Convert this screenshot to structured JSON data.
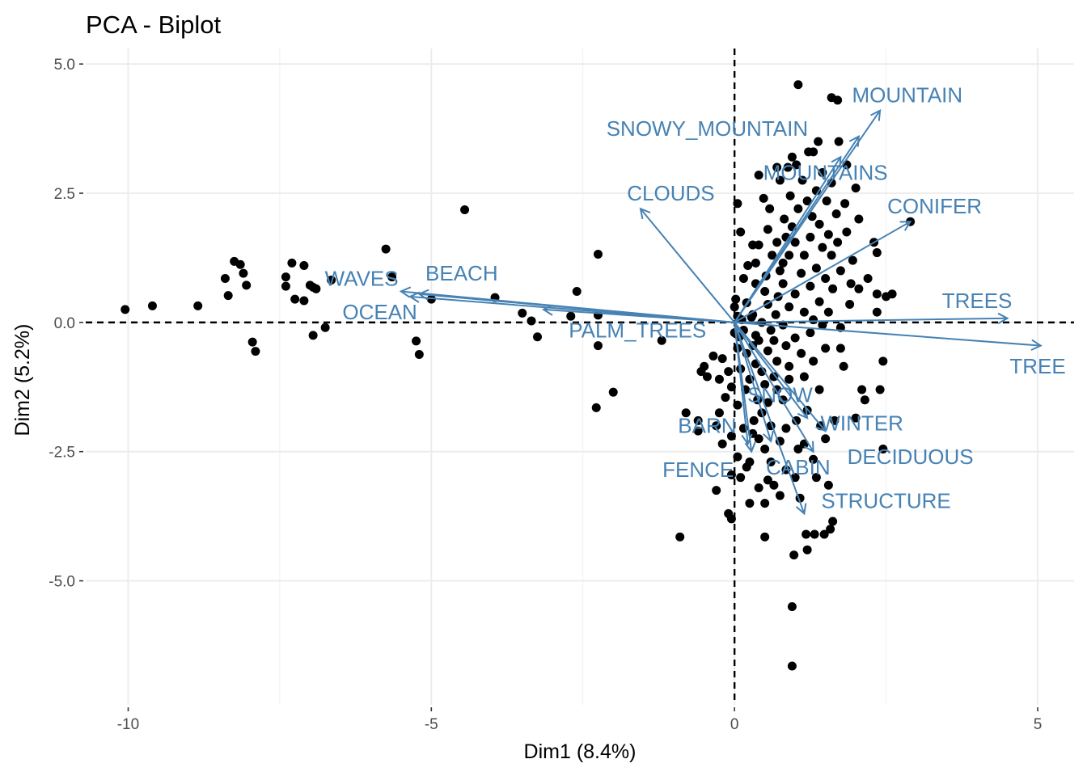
{
  "chart_data": {
    "type": "scatter",
    "subtype": "pca-biplot",
    "title": "PCA - Biplot",
    "xlabel": "Dim1 (8.4%)",
    "ylabel": "Dim2 (5.2%)",
    "xlim": [
      -10.7,
      5.6
    ],
    "ylim": [
      -7.4,
      5.3
    ],
    "x_ticks": [
      -10,
      -5,
      0,
      5
    ],
    "x_tick_labels": [
      "-10",
      "-5",
      "0",
      "5"
    ],
    "y_ticks": [
      -5,
      -2.5,
      0,
      2.5,
      5
    ],
    "y_tick_labels": [
      "-5.0",
      "-2.5",
      "0.0",
      "2.5",
      "5.0"
    ],
    "grid": true,
    "reference_lines": {
      "x": 0,
      "y": 0,
      "style": "dashed"
    },
    "colors": {
      "points": "#000000",
      "arrows": "#4682B4",
      "grid": "#ebebeb",
      "ref_line": "#000000"
    },
    "variables": [
      {
        "name": "MOUNTAIN",
        "x": 2.4,
        "y": 4.1,
        "label_x": 2.85,
        "label_y": 4.4
      },
      {
        "name": "SNOWY_MOUNTAIN",
        "x": 2.05,
        "y": 3.6,
        "label_x": -0.45,
        "label_y": 3.75
      },
      {
        "name": "MOUNTAINS",
        "x": 1.75,
        "y": 3.2,
        "label_x": 1.5,
        "label_y": 2.9
      },
      {
        "name": "CONIFER",
        "x": 2.9,
        "y": 1.95,
        "label_x": 3.3,
        "label_y": 2.25
      },
      {
        "name": "CLOUDS",
        "x": -1.55,
        "y": 2.2,
        "label_x": -1.05,
        "label_y": 2.5
      },
      {
        "name": "WAVES",
        "x": -5.5,
        "y": 0.6,
        "label_x": -6.15,
        "label_y": 0.85
      },
      {
        "name": "BEACH",
        "x": -5.2,
        "y": 0.55,
        "label_x": -4.5,
        "label_y": 0.95
      },
      {
        "name": "OCEAN",
        "x": -5.35,
        "y": 0.5,
        "label_x": -5.85,
        "label_y": 0.2
      },
      {
        "name": "PALM_TREES",
        "x": -3.15,
        "y": 0.25,
        "label_x": -1.6,
        "label_y": -0.15
      },
      {
        "name": "TREES",
        "x": 4.5,
        "y": 0.08,
        "label_x": 4.0,
        "label_y": 0.42
      },
      {
        "name": "TREE",
        "x": 5.05,
        "y": -0.45,
        "label_x": 5.0,
        "label_y": -0.85
      },
      {
        "name": "SNOW",
        "x": 1.2,
        "y": -1.85,
        "label_x": 0.75,
        "label_y": -1.4
      },
      {
        "name": "WINTER",
        "x": 1.5,
        "y": -2.1,
        "label_x": 2.1,
        "label_y": -1.95
      },
      {
        "name": "DECIDUOUS",
        "x": 1.3,
        "y": -2.5,
        "label_x": 2.9,
        "label_y": -2.6
      },
      {
        "name": "BARN",
        "x": 0.22,
        "y": -2.35,
        "label_x": -0.45,
        "label_y": -2.0
      },
      {
        "name": "FENCE",
        "x": 0.28,
        "y": -2.5,
        "label_x": -0.6,
        "label_y": -2.85
      },
      {
        "name": "CABIN",
        "x": 0.6,
        "y": -2.3,
        "label_x": 1.05,
        "label_y": -2.8
      },
      {
        "name": "STRUCTURE",
        "x": 1.15,
        "y": -3.7,
        "label_x": 2.5,
        "label_y": -3.45
      }
    ],
    "points": [
      [
        -10.05,
        0.25
      ],
      [
        -9.6,
        0.32
      ],
      [
        -8.85,
        0.32
      ],
      [
        -8.4,
        0.85
      ],
      [
        -8.35,
        0.52
      ],
      [
        -8.25,
        1.18
      ],
      [
        -8.15,
        1.12
      ],
      [
        -8.1,
        0.95
      ],
      [
        -8.05,
        0.72
      ],
      [
        -7.95,
        -0.38
      ],
      [
        -7.9,
        -0.56
      ],
      [
        -7.4,
        0.88
      ],
      [
        -7.4,
        0.7
      ],
      [
        -7.3,
        1.15
      ],
      [
        -7.25,
        0.45
      ],
      [
        -7.1,
        1.1
      ],
      [
        -7.1,
        0.42
      ],
      [
        -7.0,
        0.72
      ],
      [
        -6.95,
        0.68
      ],
      [
        -6.95,
        -0.25
      ],
      [
        -6.9,
        0.65
      ],
      [
        -6.75,
        -0.1
      ],
      [
        -6.65,
        0.82
      ],
      [
        -5.75,
        1.42
      ],
      [
        -5.65,
        0.88
      ],
      [
        -5.25,
        -0.36
      ],
      [
        -5.2,
        -0.62
      ],
      [
        -5.0,
        0.45
      ],
      [
        -4.45,
        2.18
      ],
      [
        -3.95,
        0.48
      ],
      [
        -3.5,
        0.18
      ],
      [
        -3.35,
        0.03
      ],
      [
        -3.25,
        -0.28
      ],
      [
        -2.7,
        0.12
      ],
      [
        -2.6,
        0.6
      ],
      [
        -2.25,
        1.32
      ],
      [
        -2.25,
        0.14
      ],
      [
        -2.25,
        -0.45
      ],
      [
        -2.28,
        -1.65
      ],
      [
        -2.0,
        -1.35
      ],
      [
        -1.2,
        -0.35
      ],
      [
        -0.9,
        -4.15
      ],
      [
        -0.8,
        -1.75
      ],
      [
        -0.6,
        -1.9
      ],
      [
        -0.6,
        -2.1
      ],
      [
        -0.55,
        -0.95
      ],
      [
        -0.5,
        -0.85
      ],
      [
        -0.45,
        -1.05
      ],
      [
        -0.35,
        -0.65
      ],
      [
        -0.3,
        -2.0
      ],
      [
        -0.3,
        -3.25
      ],
      [
        -0.25,
        -1.75
      ],
      [
        -0.2,
        -2.35
      ],
      [
        -0.25,
        -1.1
      ],
      [
        -0.2,
        -0.7
      ],
      [
        -0.15,
        -1.45
      ],
      [
        -0.1,
        -3.7
      ],
      [
        -0.1,
        -0.95
      ],
      [
        -0.05,
        -1.25
      ],
      [
        -0.05,
        -2.95
      ],
      [
        -0.05,
        -3.8
      ],
      [
        -0.05,
        -2.2
      ],
      [
        0.0,
        0.3
      ],
      [
        0.0,
        -0.2
      ],
      [
        0.02,
        0.45
      ],
      [
        0.05,
        2.3
      ],
      [
        0.05,
        0.12
      ],
      [
        0.05,
        -0.5
      ],
      [
        0.05,
        -1.6
      ],
      [
        0.05,
        -2.6
      ],
      [
        0.08,
        -0.28
      ],
      [
        0.1,
        1.75
      ],
      [
        0.1,
        -0.9
      ],
      [
        0.1,
        -3.0
      ],
      [
        0.12,
        0.05
      ],
      [
        0.15,
        0.85
      ],
      [
        0.15,
        -0.15
      ],
      [
        0.15,
        -2.05
      ],
      [
        0.18,
        -1.3
      ],
      [
        0.2,
        0.38
      ],
      [
        0.2,
        -0.6
      ],
      [
        0.2,
        -2.8
      ],
      [
        0.22,
        1.1
      ],
      [
        0.25,
        -1.1
      ],
      [
        0.25,
        -2.7
      ],
      [
        0.25,
        -3.5
      ],
      [
        0.28,
        0.1
      ],
      [
        0.3,
        0.15
      ],
      [
        0.3,
        1.5
      ],
      [
        0.3,
        -0.45
      ],
      [
        0.3,
        -2.15
      ],
      [
        0.32,
        -1.9
      ],
      [
        0.35,
        0.75
      ],
      [
        0.35,
        1.15
      ],
      [
        0.35,
        -0.25
      ],
      [
        0.35,
        -0.8
      ],
      [
        0.38,
        -1.5
      ],
      [
        0.4,
        2.85
      ],
      [
        0.4,
        1.5
      ],
      [
        0.4,
        -0.35
      ],
      [
        0.4,
        -2.25
      ],
      [
        0.4,
        -3.2
      ],
      [
        0.45,
        0.0
      ],
      [
        0.45,
        -1.75
      ],
      [
        0.45,
        -0.95
      ],
      [
        0.48,
        2.4
      ],
      [
        0.5,
        0.6
      ],
      [
        0.5,
        -1.2
      ],
      [
        0.5,
        -2.45
      ],
      [
        0.5,
        -3.5
      ],
      [
        0.5,
        -4.15
      ],
      [
        0.52,
        0.9
      ],
      [
        0.55,
        1.8
      ],
      [
        0.55,
        0.35
      ],
      [
        0.55,
        -0.55
      ],
      [
        0.55,
        -1.55
      ],
      [
        0.55,
        -3.05
      ],
      [
        0.58,
        2.2
      ],
      [
        0.6,
        -0.15
      ],
      [
        0.6,
        -2.0
      ],
      [
        0.6,
        -2.7
      ],
      [
        0.62,
        1.3
      ],
      [
        0.65,
        -0.35
      ],
      [
        0.65,
        -1.05
      ],
      [
        0.65,
        -3.15
      ],
      [
        0.68,
        0.15
      ],
      [
        0.7,
        3.0
      ],
      [
        0.7,
        1.55
      ],
      [
        0.7,
        -0.75
      ],
      [
        0.7,
        -1.3
      ],
      [
        0.72,
        0.5
      ],
      [
        0.75,
        2.75
      ],
      [
        0.75,
        1.0
      ],
      [
        0.75,
        -2.3
      ],
      [
        0.75,
        -3.35
      ],
      [
        0.8,
        0.75
      ],
      [
        0.8,
        -0.05
      ],
      [
        0.8,
        -1.5
      ],
      [
        0.82,
        2.0
      ],
      [
        0.85,
        1.65
      ],
      [
        0.85,
        -0.45
      ],
      [
        0.85,
        -2.05
      ],
      [
        0.85,
        -2.85
      ],
      [
        0.88,
        3.0
      ],
      [
        0.9,
        1.3
      ],
      [
        0.9,
        0.3
      ],
      [
        0.9,
        -0.85
      ],
      [
        0.9,
        -1.1
      ],
      [
        0.92,
        2.45
      ],
      [
        0.95,
        1.85
      ],
      [
        0.95,
        3.2
      ],
      [
        0.95,
        -5.5
      ],
      [
        0.95,
        -6.65
      ],
      [
        0.98,
        -4.5
      ],
      [
        1.0,
        -3.0
      ],
      [
        1.0,
        1.55
      ],
      [
        1.0,
        0.55
      ],
      [
        1.0,
        -0.3
      ],
      [
        1.02,
        3.05
      ],
      [
        1.02,
        -1.9
      ],
      [
        1.05,
        2.2
      ],
      [
        1.05,
        -2.45
      ],
      [
        1.05,
        4.6
      ],
      [
        1.08,
        -3.4
      ],
      [
        1.1,
        0.95
      ],
      [
        1.1,
        -0.6
      ],
      [
        1.12,
        2.75
      ],
      [
        1.15,
        1.3
      ],
      [
        1.15,
        0.2
      ],
      [
        1.15,
        -1.05
      ],
      [
        1.15,
        -2.35
      ],
      [
        1.18,
        -4.1
      ],
      [
        1.2,
        2.35
      ],
      [
        1.2,
        -1.7
      ],
      [
        1.2,
        -4.4
      ],
      [
        1.22,
        3.3
      ],
      [
        1.25,
        1.65
      ],
      [
        1.25,
        0.7
      ],
      [
        1.25,
        -0.2
      ],
      [
        1.28,
        2.05
      ],
      [
        1.3,
        3.3
      ],
      [
        1.3,
        -0.75
      ],
      [
        1.3,
        -2.65
      ],
      [
        1.32,
        -4.1
      ],
      [
        1.35,
        2.55
      ],
      [
        1.35,
        1.05
      ],
      [
        1.35,
        -3.0
      ],
      [
        1.38,
        3.5
      ],
      [
        1.4,
        1.9
      ],
      [
        1.4,
        0.4
      ],
      [
        1.4,
        -1.3
      ],
      [
        1.42,
        -2.0
      ],
      [
        1.45,
        2.9
      ],
      [
        1.45,
        1.45
      ],
      [
        1.45,
        -0.05
      ],
      [
        1.48,
        -4.1
      ],
      [
        1.5,
        0.85
      ],
      [
        1.5,
        -0.5
      ],
      [
        1.5,
        -2.25
      ],
      [
        1.52,
        2.35
      ],
      [
        1.55,
        1.7
      ],
      [
        1.55,
        0.2
      ],
      [
        1.55,
        -3.15
      ],
      [
        1.58,
        -4.0
      ],
      [
        1.6,
        4.35
      ],
      [
        1.6,
        2.7
      ],
      [
        1.6,
        1.3
      ],
      [
        1.62,
        0.65
      ],
      [
        1.62,
        -3.85
      ],
      [
        1.65,
        -1.9
      ],
      [
        1.68,
        2.1
      ],
      [
        1.7,
        4.3
      ],
      [
        1.7,
        1.55
      ],
      [
        1.72,
        3.5
      ],
      [
        1.75,
        1.0
      ],
      [
        1.75,
        -0.1
      ],
      [
        1.75,
        -0.5
      ],
      [
        1.8,
        -0.85
      ],
      [
        1.82,
        2.3
      ],
      [
        1.85,
        1.75
      ],
      [
        1.85,
        3.05
      ],
      [
        1.9,
        0.35
      ],
      [
        1.92,
        0.75
      ],
      [
        1.95,
        1.2
      ],
      [
        2.0,
        -1.85
      ],
      [
        2.0,
        2.6
      ],
      [
        2.05,
        0.65
      ],
      [
        2.1,
        -1.3
      ],
      [
        2.15,
        -1.5
      ],
      [
        2.2,
        0.85
      ],
      [
        2.3,
        1.55
      ],
      [
        2.35,
        1.35
      ],
      [
        2.35,
        0.2
      ],
      [
        2.35,
        0.55
      ],
      [
        2.4,
        -1.3
      ],
      [
        2.45,
        -0.75
      ],
      [
        2.45,
        -2.45
      ],
      [
        2.5,
        0.5
      ],
      [
        2.6,
        0.55
      ],
      [
        2.9,
        1.95
      ],
      [
        2.05,
        2.0
      ],
      [
        1.3,
        0.05
      ],
      [
        0.8,
        1.15
      ]
    ]
  }
}
